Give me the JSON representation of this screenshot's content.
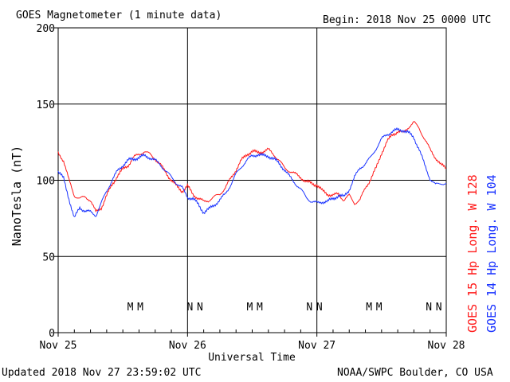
{
  "header": {
    "title": "GOES Magnetometer (1 minute data)",
    "begin": "Begin:  2018 Nov 25 0000 UTC"
  },
  "footer": {
    "updated": "Updated 2018 Nov 27 23:59:02 UTC",
    "credit": "NOAA/SWPC Boulder, CO USA"
  },
  "colors": {
    "goes15": "#ff1a1a",
    "goes14": "#1a33ff",
    "axis": "#000000"
  },
  "chart_data": {
    "type": "line",
    "xlabel": "Universal Time",
    "ylabel": "NanoTesla (nT)",
    "ylim": [
      0,
      200
    ],
    "xlim": [
      0,
      72
    ],
    "x_unit": "hours since 2018 Nov 25 0000 UTC",
    "grid": true,
    "yticks": [
      "0",
      "50",
      "100",
      "150",
      "200"
    ],
    "xticks": [
      {
        "x": 0,
        "label": "Nov 25"
      },
      {
        "x": 24,
        "label": "Nov 26"
      },
      {
        "x": 48,
        "label": "Nov 27"
      },
      {
        "x": 72,
        "label": "Nov 28"
      }
    ],
    "series": [
      {
        "name": "GOES 15 Hp  Long. W 128",
        "color": "#ff1a1a",
        "points": [
          [
            0,
            118
          ],
          [
            1,
            113
          ],
          [
            2,
            100
          ],
          [
            3,
            90
          ],
          [
            4,
            88
          ],
          [
            5,
            89
          ],
          [
            6,
            87
          ],
          [
            7,
            79
          ],
          [
            8,
            82
          ],
          [
            9,
            90
          ],
          [
            10,
            97
          ],
          [
            11,
            103
          ],
          [
            12,
            107
          ],
          [
            13,
            110
          ],
          [
            14,
            115
          ],
          [
            15,
            117
          ],
          [
            16,
            119
          ],
          [
            17,
            117
          ],
          [
            18,
            114
          ],
          [
            19,
            110
          ],
          [
            20,
            105
          ],
          [
            21,
            100
          ],
          [
            22,
            96
          ],
          [
            23,
            93
          ],
          [
            24,
            96
          ],
          [
            25,
            91
          ],
          [
            26,
            88
          ],
          [
            27,
            86
          ],
          [
            28,
            87
          ],
          [
            29,
            89
          ],
          [
            30,
            91
          ],
          [
            31,
            95
          ],
          [
            32,
            101
          ],
          [
            33,
            107
          ],
          [
            34,
            113
          ],
          [
            35,
            117
          ],
          [
            36,
            119
          ],
          [
            37,
            118
          ],
          [
            38,
            119
          ],
          [
            39,
            120
          ],
          [
            40,
            117
          ],
          [
            41,
            113
          ],
          [
            42,
            108
          ],
          [
            43,
            106
          ],
          [
            44,
            104
          ],
          [
            45,
            102
          ],
          [
            46,
            99
          ],
          [
            47,
            98
          ],
          [
            48,
            97
          ],
          [
            49,
            93
          ],
          [
            50,
            91
          ],
          [
            51,
            90
          ],
          [
            52,
            91
          ],
          [
            53,
            87
          ],
          [
            54,
            90
          ],
          [
            55,
            85
          ],
          [
            56,
            87
          ],
          [
            57,
            95
          ],
          [
            58,
            101
          ],
          [
            59,
            108
          ],
          [
            60,
            118
          ],
          [
            61,
            125
          ],
          [
            62,
            130
          ],
          [
            63,
            132
          ],
          [
            64,
            131
          ],
          [
            65,
            135
          ],
          [
            66,
            138
          ],
          [
            67,
            134
          ],
          [
            68,
            127
          ],
          [
            69,
            120
          ],
          [
            70,
            115
          ],
          [
            71,
            110
          ],
          [
            72,
            108
          ]
        ]
      },
      {
        "name": "GOES 14 Hp  Long. W 104",
        "color": "#1a33ff",
        "points": [
          [
            0,
            106
          ],
          [
            1,
            101
          ],
          [
            2,
            88
          ],
          [
            3,
            75
          ],
          [
            4,
            82
          ],
          [
            5,
            80
          ],
          [
            6,
            79
          ],
          [
            7,
            77
          ],
          [
            8,
            85
          ],
          [
            9,
            93
          ],
          [
            10,
            100
          ],
          [
            11,
            106
          ],
          [
            12,
            110
          ],
          [
            13,
            113
          ],
          [
            14,
            114
          ],
          [
            15,
            115
          ],
          [
            16,
            116
          ],
          [
            17,
            115
          ],
          [
            18,
            113
          ],
          [
            19,
            110
          ],
          [
            20,
            106
          ],
          [
            21,
            102
          ],
          [
            22,
            98
          ],
          [
            23,
            95
          ],
          [
            24,
            89
          ],
          [
            25,
            88
          ],
          [
            26,
            84
          ],
          [
            27,
            79
          ],
          [
            28,
            81
          ],
          [
            29,
            84
          ],
          [
            30,
            87
          ],
          [
            31,
            91
          ],
          [
            32,
            97
          ],
          [
            33,
            104
          ],
          [
            34,
            109
          ],
          [
            35,
            113
          ],
          [
            36,
            116
          ],
          [
            37,
            117
          ],
          [
            38,
            116
          ],
          [
            39,
            116
          ],
          [
            40,
            114
          ],
          [
            41,
            111
          ],
          [
            42,
            107
          ],
          [
            43,
            102
          ],
          [
            44,
            98
          ],
          [
            45,
            94
          ],
          [
            46,
            89
          ],
          [
            47,
            86
          ],
          [
            48,
            85
          ],
          [
            49,
            86
          ],
          [
            50,
            86
          ],
          [
            51,
            88
          ],
          [
            52,
            90
          ],
          [
            53,
            89
          ],
          [
            54,
            94
          ],
          [
            55,
            102
          ],
          [
            56,
            108
          ],
          [
            57,
            111
          ],
          [
            58,
            115
          ],
          [
            59,
            121
          ],
          [
            60,
            127
          ],
          [
            61,
            130
          ],
          [
            62,
            132
          ],
          [
            63,
            133
          ],
          [
            64,
            133
          ],
          [
            65,
            131
          ],
          [
            66,
            128
          ],
          [
            67,
            120
          ],
          [
            68,
            110
          ],
          [
            69,
            101
          ],
          [
            70,
            97
          ],
          [
            71,
            98
          ],
          [
            72,
            98
          ]
        ]
      }
    ],
    "annotations": [
      {
        "x": 14.5,
        "text": "M",
        "color": "#1a33ff"
      },
      {
        "x": 16.5,
        "text": "M",
        "color": "#ff1a1a"
      },
      {
        "x": 26.5,
        "text": "N",
        "color": "#1a33ff"
      },
      {
        "x": 28.5,
        "text": "N",
        "color": "#ff1a1a"
      },
      {
        "x": 38.5,
        "text": "M",
        "color": "#1a33ff"
      },
      {
        "x": 40.5,
        "text": "M",
        "color": "#ff1a1a"
      },
      {
        "x": 50.5,
        "text": "N",
        "color": "#1a33ff"
      },
      {
        "x": 52.5,
        "text": "N",
        "color": "#ff1a1a"
      },
      {
        "x": 62.5,
        "text": "M",
        "color": "#1a33ff"
      },
      {
        "x": 64.5,
        "text": "M",
        "color": "#ff1a1a"
      },
      {
        "x": 74.5,
        "text": "N",
        "color": "#1a33ff"
      },
      {
        "x": 76.5,
        "text": "N",
        "color": "#ff1a1a"
      }
    ]
  }
}
